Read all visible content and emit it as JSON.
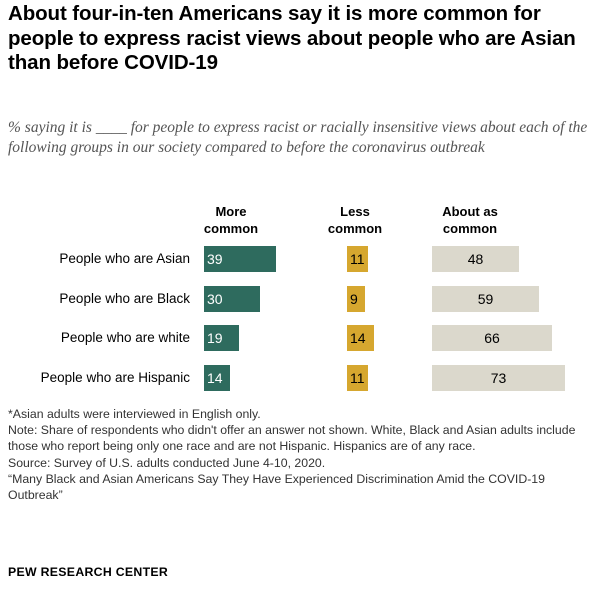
{
  "title": "About four-in-ten Americans say it is more common for people to express racist views about people who are Asian than before COVID-19",
  "subtitle": "% saying it is ____ for people to express racist or racially insensitive views about each of the following groups in our society compared to before the coronavirus outbreak",
  "colors": {
    "more": "#2e6b5e",
    "less": "#d6a72f",
    "same": "#dbd8cc"
  },
  "chart_data": {
    "type": "bar",
    "categories": [
      "People who are Asian",
      "People who are Black",
      "People who are white",
      "People who are Hispanic"
    ],
    "series": [
      {
        "name": "More common",
        "values": [
          39,
          30,
          19,
          14
        ]
      },
      {
        "name": "Less common",
        "values": [
          11,
          9,
          14,
          11
        ]
      },
      {
        "name": "About as common",
        "values": [
          48,
          59,
          66,
          73
        ]
      }
    ]
  },
  "notes": [
    "*Asian adults were interviewed in English only.",
    "Note: Share of respondents who didn't offer an answer not shown. White, Black and Asian adults include those who report being only one race and are not Hispanic. Hispanics are of any race.",
    "Source: Survey of U.S. adults conducted June 4-10, 2020.",
    "“Many Black and Asian Americans Say They Have Experienced Discrimination Amid the COVID-19 Outbreak”"
  ],
  "footer": "PEW RESEARCH CENTER"
}
